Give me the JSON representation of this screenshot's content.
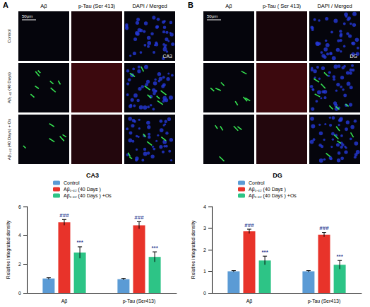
{
  "figure": {
    "panels": [
      {
        "label": "A",
        "columns": [
          "Aβ",
          "p-Tau (Ser 413)",
          "DAPI / Merged"
        ],
        "rows": [
          "Control",
          "Aβ₁₋₄₂ (40 Days)",
          "Aβ₁₋₄₂ (40 Days) + Os"
        ],
        "scale_bar": "50μm",
        "region": "CA3"
      },
      {
        "label": "B",
        "columns": [
          "Aβ",
          "p-Tau ( Ser 413)",
          "DAPI / Merged"
        ],
        "rows": [],
        "scale_bar": "50μm",
        "region": "DG"
      }
    ]
  },
  "chart_data": [
    {
      "type": "bar",
      "title": "CA3",
      "categories": [
        "Aβ",
        "p-Tau (Ser413)"
      ],
      "ylabel": "Relative integrated density",
      "ylim": [
        0,
        6
      ],
      "yticks": [
        0,
        2,
        4,
        6
      ],
      "grid": false,
      "legend": "top",
      "series": [
        {
          "name": "Control",
          "color": "#5b9bd5",
          "values": [
            1,
            0.95
          ],
          "errors": [
            0.05,
            0.05
          ]
        },
        {
          "name": "Aβ₁₋₄₂ (40 Days )",
          "color": "#e8332a",
          "values": [
            4.9,
            4.7
          ],
          "errors": [
            0.2,
            0.25
          ],
          "annotation": "###"
        },
        {
          "name": "Aβ₁₋₄₂ (40 Days ) +Os",
          "color": "#2dc486",
          "values": [
            2.8,
            2.5
          ],
          "errors": [
            0.4,
            0.35
          ],
          "annotation": "***"
        }
      ]
    },
    {
      "type": "bar",
      "title": "DG",
      "categories": [
        "Aβ",
        "p-Tau (Ser413)"
      ],
      "ylabel": "Relative integrated density",
      "ylim": [
        0,
        4
      ],
      "yticks": [
        0,
        1,
        2,
        3,
        4
      ],
      "grid": false,
      "legend": "top",
      "series": [
        {
          "name": "Control",
          "color": "#5b9bd5",
          "values": [
            1,
            1
          ],
          "errors": [
            0.03,
            0.03
          ]
        },
        {
          "name": "Aβ₁₋₄₂ (40 Days )",
          "color": "#e8332a",
          "values": [
            2.85,
            2.7
          ],
          "errors": [
            0.1,
            0.1
          ],
          "annotation": "###"
        },
        {
          "name": "Aβ₁₋₄₂ (40 Days ) +Os",
          "color": "#2dc486",
          "values": [
            1.5,
            1.3
          ],
          "errors": [
            0.2,
            0.2
          ],
          "annotation": "***"
        }
      ]
    }
  ]
}
